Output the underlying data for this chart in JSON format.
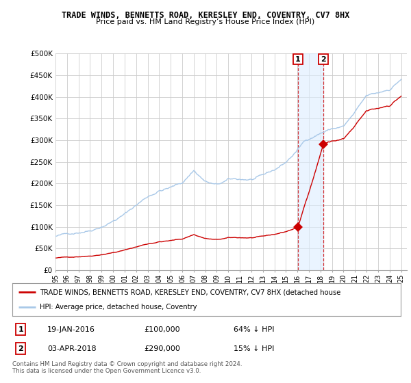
{
  "title": "TRADE WINDS, BENNETTS ROAD, KERESLEY END, COVENTRY, CV7 8HX",
  "subtitle": "Price paid vs. HM Land Registry’s House Price Index (HPI)",
  "ylabel_ticks": [
    "£0",
    "£50K",
    "£100K",
    "£150K",
    "£200K",
    "£250K",
    "£300K",
    "£350K",
    "£400K",
    "£450K",
    "£500K"
  ],
  "ylim": [
    0,
    500000
  ],
  "xlim_start": 1995.0,
  "xlim_end": 2025.5,
  "hpi_color": "#a8c8e8",
  "property_color": "#cc0000",
  "background_color": "#ffffff",
  "grid_color": "#cccccc",
  "transaction1_x": 2016.05,
  "transaction1_y": 100000,
  "transaction2_x": 2018.25,
  "transaction2_y": 290000,
  "legend_label_red": "TRADE WINDS, BENNETTS ROAD, KERESLEY END, COVENTRY, CV7 8HX (detached house",
  "legend_label_blue": "HPI: Average price, detached house, Coventry",
  "table_row1": [
    "1",
    "19-JAN-2016",
    "£100,000",
    "64% ↓ HPI"
  ],
  "table_row2": [
    "2",
    "03-APR-2018",
    "£290,000",
    "15% ↓ HPI"
  ],
  "footer": "Contains HM Land Registry data © Crown copyright and database right 2024.\nThis data is licensed under the Open Government Licence v3.0."
}
